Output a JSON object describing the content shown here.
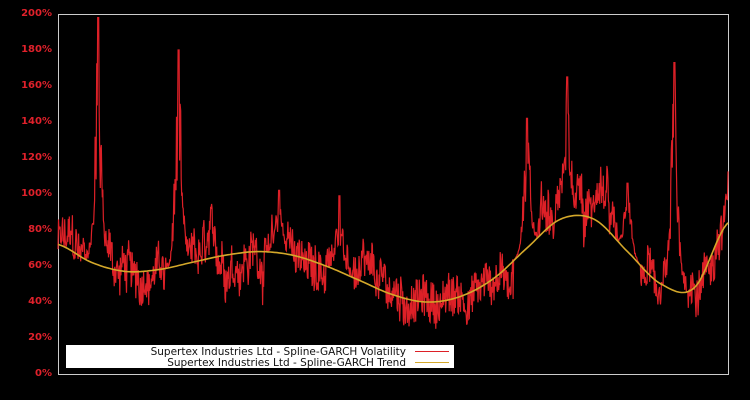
{
  "chart_data": {
    "type": "line",
    "title": "",
    "xlabel": "",
    "ylabel": "",
    "ylim": [
      0,
      200
    ],
    "y_ticks": [
      "0%",
      "20%",
      "40%",
      "60%",
      "80%",
      "100%",
      "120%",
      "140%",
      "160%",
      "180%",
      "200%"
    ],
    "grid": false,
    "legend_position": "lower-left",
    "background": "#000000",
    "axis_color": "#cccccc",
    "series": [
      {
        "name": "Supertex Industries Ltd - Spline-GARCH Volatility",
        "color": "#dd2027",
        "approx_peaks": [
          {
            "x_frac": 0.06,
            "value": 198
          },
          {
            "x_frac": 0.18,
            "value": 180
          },
          {
            "x_frac": 0.33,
            "value": 102
          },
          {
            "x_frac": 0.42,
            "value": 99
          },
          {
            "x_frac": 0.7,
            "value": 142
          },
          {
            "x_frac": 0.76,
            "value": 165
          },
          {
            "x_frac": 0.85,
            "value": 106
          },
          {
            "x_frac": 0.92,
            "value": 173
          }
        ],
        "range_min": 20,
        "typical_range": [
          30,
          90
        ]
      },
      {
        "name": "Supertex Industries Ltd - Spline-GARCH Trend",
        "color": "#d4a82a",
        "x_frac": [
          0.0,
          0.05,
          0.1,
          0.15,
          0.2,
          0.25,
          0.3,
          0.35,
          0.4,
          0.45,
          0.5,
          0.55,
          0.6,
          0.65,
          0.7,
          0.75,
          0.8,
          0.85,
          0.9,
          0.95,
          1.0
        ],
        "values": [
          72,
          62,
          57,
          58,
          62,
          66,
          68,
          66,
          60,
          52,
          44,
          40,
          43,
          53,
          70,
          86,
          86,
          68,
          50,
          48,
          84
        ]
      }
    ]
  },
  "legend": {
    "items": [
      {
        "label": "Supertex Industries Ltd - Spline-GARCH Volatility",
        "color": "#dd2027"
      },
      {
        "label": "Supertex Industries Ltd - Spline-GARCH Trend",
        "color": "#d4a82a"
      }
    ]
  }
}
